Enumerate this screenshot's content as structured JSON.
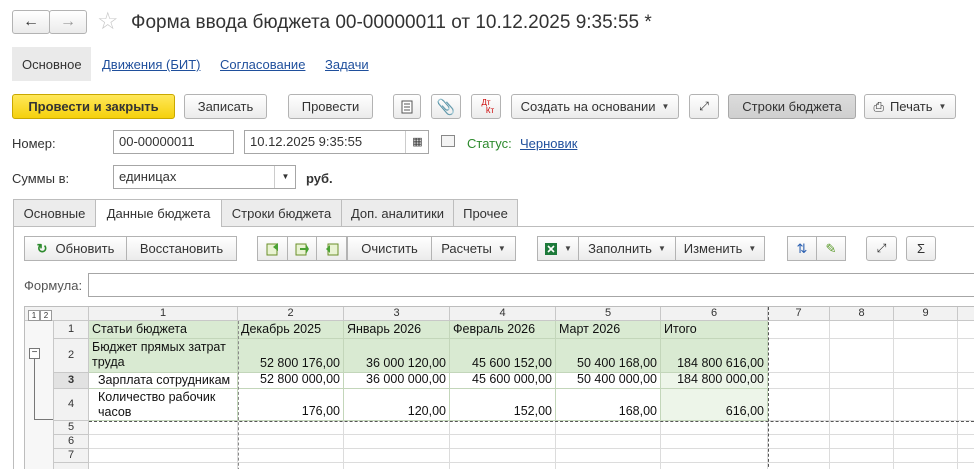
{
  "header": {
    "title": "Форма ввода бюджета 00-00000011 от 10.12.2025 9:35:55 *"
  },
  "nav": [
    "Основное",
    "Движения (БИТ)",
    "Согласование",
    "Задачи"
  ],
  "toolbar": {
    "post_close": "Провести и закрыть",
    "write": "Записать",
    "post": "Провести",
    "dt": "Дт",
    "kt": "Кт",
    "create_based": "Создать на основании",
    "budget_lines": "Строки бюджета",
    "print": "Печать"
  },
  "fields": {
    "number_label": "Номер:",
    "number": "00-00000011",
    "date": "10.12.2025  9:35:55",
    "status_label": "Статус:",
    "status": "Черновик",
    "sums_label": "Суммы в:",
    "sums": "единицах",
    "currency": "руб."
  },
  "tabs": [
    "Основные",
    "Данные бюджета",
    "Строки бюджета",
    "Доп. аналитики",
    "Прочее"
  ],
  "grid_toolbar": {
    "refresh": "Обновить",
    "restore": "Восстановить",
    "clear": "Очистить",
    "calc": "Расчеты",
    "fill": "Заполнить",
    "change": "Изменить"
  },
  "formula_label": "Формула:",
  "sheet": {
    "levels": [
      "1",
      "2"
    ],
    "columns": [
      "1",
      "2",
      "3",
      "4",
      "5",
      "6",
      "7",
      "8",
      "9"
    ],
    "row_numbers": [
      "1",
      "2",
      "3",
      "4",
      "5",
      "6",
      "7"
    ],
    "rows": [
      [
        "Статьи бюджета",
        "Декабрь 2025",
        "Январь 2026",
        "Февраль 2026",
        "Март 2026",
        "Итого"
      ],
      [
        "Бюджет прямых затрат труда",
        "52 800 176,00",
        "36 000 120,00",
        "45 600 152,00",
        "50 400 168,00",
        "184 800 616,00"
      ],
      [
        "Зарплата сотрудникам",
        "52 800 000,00",
        "36 000 000,00",
        "45 600 000,00",
        "50 400 000,00",
        "184 800 000,00"
      ],
      [
        "Количество рабочик часов",
        "176,00",
        "120,00",
        "152,00",
        "168,00",
        "616,00"
      ]
    ]
  }
}
